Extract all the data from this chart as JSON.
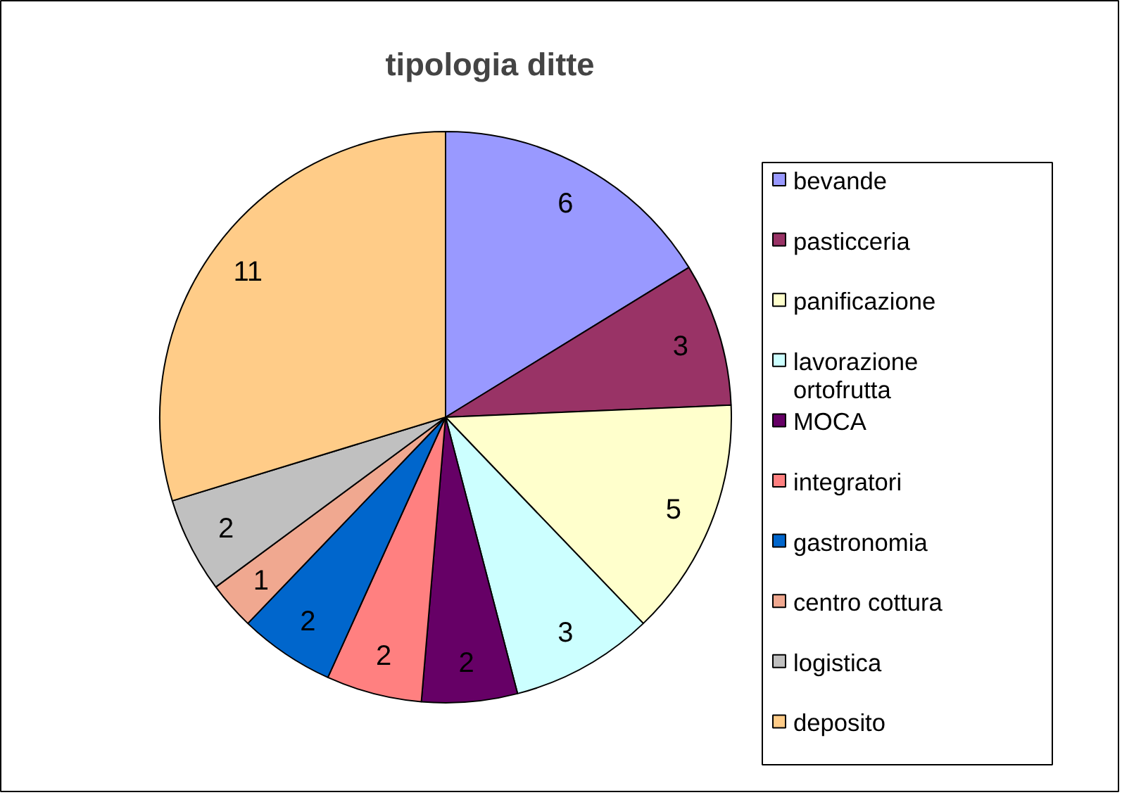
{
  "chart_data": {
    "type": "pie",
    "title": "tipologia ditte",
    "categories": [
      "bevande",
      "pasticceria",
      "panificazione",
      "lavorazione ortofrutta",
      "MOCA",
      "integratori",
      "gastronomia",
      "centro cottura",
      "logistica",
      "deposito"
    ],
    "values": [
      6,
      3,
      5,
      3,
      2,
      2,
      2,
      1,
      2,
      11
    ],
    "colors": [
      "#9999ff",
      "#993366",
      "#ffffcc",
      "#ccffff",
      "#660066",
      "#ff8080",
      "#0066cc",
      "#f0a890",
      "#c0c0c0",
      "#ffcc88"
    ],
    "data_labels": true,
    "legend": "right"
  }
}
